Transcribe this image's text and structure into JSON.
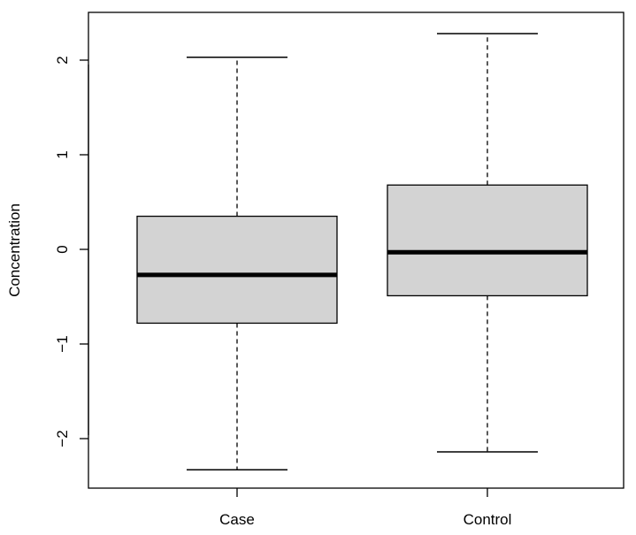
{
  "chart_data": {
    "type": "boxplot",
    "title": "",
    "xlabel": "",
    "ylabel": "Concentration",
    "ylim": [
      -2.5,
      2.45
    ],
    "y_ticks": [
      -2,
      -1,
      0,
      1,
      2
    ],
    "y_tick_labels": [
      "−2",
      "−1",
      "0",
      "1",
      "2"
    ],
    "categories": [
      "Case",
      "Control"
    ],
    "boxes": [
      {
        "category": "Case",
        "whisker_low": -2.33,
        "q1": -0.78,
        "median": -0.27,
        "q3": 0.35,
        "whisker_high": 2.03
      },
      {
        "category": "Control",
        "whisker_low": -2.14,
        "q1": -0.49,
        "median": -0.03,
        "q3": 0.68,
        "whisker_high": 2.28
      }
    ],
    "box_fill": "#d3d3d3",
    "line_color": "#000000",
    "grid": false,
    "legend": "none"
  }
}
